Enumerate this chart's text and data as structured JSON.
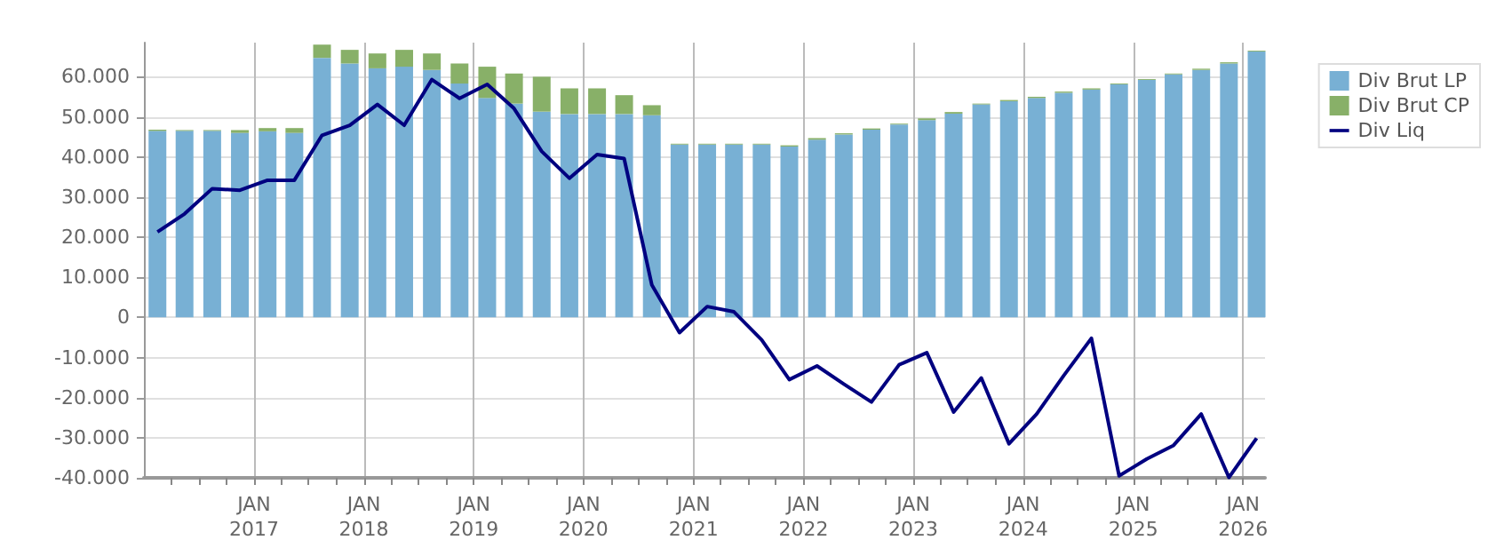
{
  "chart_data": {
    "type": "bar",
    "stacked": true,
    "x": [
      "2016-02-15",
      "2016-05-15",
      "2016-08-15",
      "2016-11-15",
      "2017-02-15",
      "2017-05-15",
      "2017-08-15",
      "2017-11-15",
      "2018-02-15",
      "2018-05-15",
      "2018-08-15",
      "2018-11-15",
      "2019-02-15",
      "2019-05-15",
      "2019-08-15",
      "2019-11-15",
      "2020-02-15",
      "2020-05-15",
      "2020-08-15",
      "2020-11-15",
      "2021-02-15",
      "2021-05-15",
      "2021-08-15",
      "2021-11-15",
      "2022-02-15",
      "2022-05-15",
      "2022-08-15",
      "2022-11-15",
      "2023-02-15",
      "2023-05-15",
      "2023-08-15",
      "2023-11-15",
      "2024-02-15",
      "2024-05-15",
      "2024-08-15",
      "2024-11-15",
      "2025-02-15",
      "2025-05-15",
      "2025-08-15",
      "2025-11-15",
      "2026-02-15"
    ],
    "series": [
      {
        "name": "Div Brut LP",
        "color": "#78b0d4",
        "values": [
          46500,
          46500,
          46500,
          46000,
          46400,
          46000,
          64700,
          63300,
          62100,
          62500,
          61700,
          58300,
          54700,
          53300,
          51300,
          50700,
          50700,
          50700,
          50400,
          43100,
          43100,
          43100,
          43100,
          42600,
          44300,
          45600,
          46800,
          48100,
          49200,
          50800,
          53100,
          53900,
          54700,
          56000,
          56800,
          58100,
          59200,
          60600,
          61700,
          63300,
          66300
        ]
      },
      {
        "name": "Div Brut CP",
        "color": "#88b068",
        "values": [
          300,
          200,
          200,
          700,
          800,
          1200,
          3300,
          3400,
          3700,
          4200,
          4100,
          5000,
          7800,
          7500,
          8700,
          6400,
          6400,
          4700,
          2500,
          200,
          200,
          200,
          200,
          300,
          400,
          300,
          300,
          200,
          400,
          400,
          200,
          300,
          300,
          300,
          300,
          200,
          200,
          200,
          300,
          300,
          200
        ]
      },
      {
        "name": "Div Liq",
        "type": "line",
        "color": "#000080",
        "marker": "none",
        "values": [
          21300,
          25800,
          32100,
          31700,
          34200,
          34200,
          45400,
          47900,
          53100,
          47900,
          59300,
          54600,
          58100,
          52100,
          41400,
          34700,
          40600,
          39600,
          8100,
          -3800,
          2700,
          1400,
          -5600,
          -15500,
          -12100,
          -16600,
          -21100,
          -11800,
          -8800,
          -23600,
          -15100,
          -31500,
          -24100,
          -14500,
          -5200,
          -39500,
          -35300,
          -31900,
          -24100,
          -39900,
          -30100
        ]
      }
    ],
    "xlim": [
      "2016-01-01",
      "2026-03-15"
    ],
    "xticks": [
      {
        "value": "2016-04-01",
        "label": null
      },
      {
        "value": "2016-07-01",
        "label": null
      },
      {
        "value": "2016-10-01",
        "label": null
      },
      {
        "value": "2017-01-01",
        "label": "JAN\n2017"
      },
      {
        "value": "2017-04-01",
        "label": null
      },
      {
        "value": "2017-07-01",
        "label": null
      },
      {
        "value": "2017-10-01",
        "label": null
      },
      {
        "value": "2018-01-01",
        "label": "JAN\n2018"
      },
      {
        "value": "2018-04-01",
        "label": null
      },
      {
        "value": "2018-07-01",
        "label": null
      },
      {
        "value": "2018-10-01",
        "label": null
      },
      {
        "value": "2019-01-01",
        "label": "JAN\n2019"
      },
      {
        "value": "2019-04-01",
        "label": null
      },
      {
        "value": "2019-07-01",
        "label": null
      },
      {
        "value": "2019-10-01",
        "label": null
      },
      {
        "value": "2020-01-01",
        "label": "JAN\n2020"
      },
      {
        "value": "2020-04-01",
        "label": null
      },
      {
        "value": "2020-07-01",
        "label": null
      },
      {
        "value": "2020-10-01",
        "label": null
      },
      {
        "value": "2021-01-01",
        "label": "JAN\n2021"
      },
      {
        "value": "2021-04-01",
        "label": null
      },
      {
        "value": "2021-07-01",
        "label": null
      },
      {
        "value": "2021-10-01",
        "label": null
      },
      {
        "value": "2022-01-01",
        "label": "JAN\n2022"
      },
      {
        "value": "2022-04-01",
        "label": null
      },
      {
        "value": "2022-07-01",
        "label": null
      },
      {
        "value": "2022-10-01",
        "label": null
      },
      {
        "value": "2023-01-01",
        "label": "JAN\n2023"
      },
      {
        "value": "2023-04-01",
        "label": null
      },
      {
        "value": "2023-07-01",
        "label": null
      },
      {
        "value": "2023-10-01",
        "label": null
      },
      {
        "value": "2024-01-01",
        "label": "JAN\n2024"
      },
      {
        "value": "2024-04-01",
        "label": null
      },
      {
        "value": "2024-07-01",
        "label": null
      },
      {
        "value": "2024-10-01",
        "label": null
      },
      {
        "value": "2025-01-01",
        "label": "JAN\n2025"
      },
      {
        "value": "2025-04-01",
        "label": null
      },
      {
        "value": "2025-07-01",
        "label": null
      },
      {
        "value": "2025-10-01",
        "label": null
      },
      {
        "value": "2026-01-01",
        "label": "JAN\n2026"
      }
    ],
    "ylim": [
      -40000,
      68500
    ],
    "yticks": [
      {
        "value": -40000,
        "label": "-40.000"
      },
      {
        "value": -30000,
        "label": "-30.000"
      },
      {
        "value": -20000,
        "label": "-20.000"
      },
      {
        "value": -10000,
        "label": "-10.000"
      },
      0,
      {
        "value": 10000,
        "label": "10.000"
      },
      {
        "value": 20000,
        "label": "20.000"
      },
      {
        "value": 30000,
        "label": "30.000"
      },
      {
        "value": 40000,
        "label": "40.000"
      },
      {
        "value": 50000,
        "label": "50.000"
      },
      {
        "value": 60000,
        "label": "60.000"
      }
    ],
    "grid": true,
    "legend": "right"
  }
}
